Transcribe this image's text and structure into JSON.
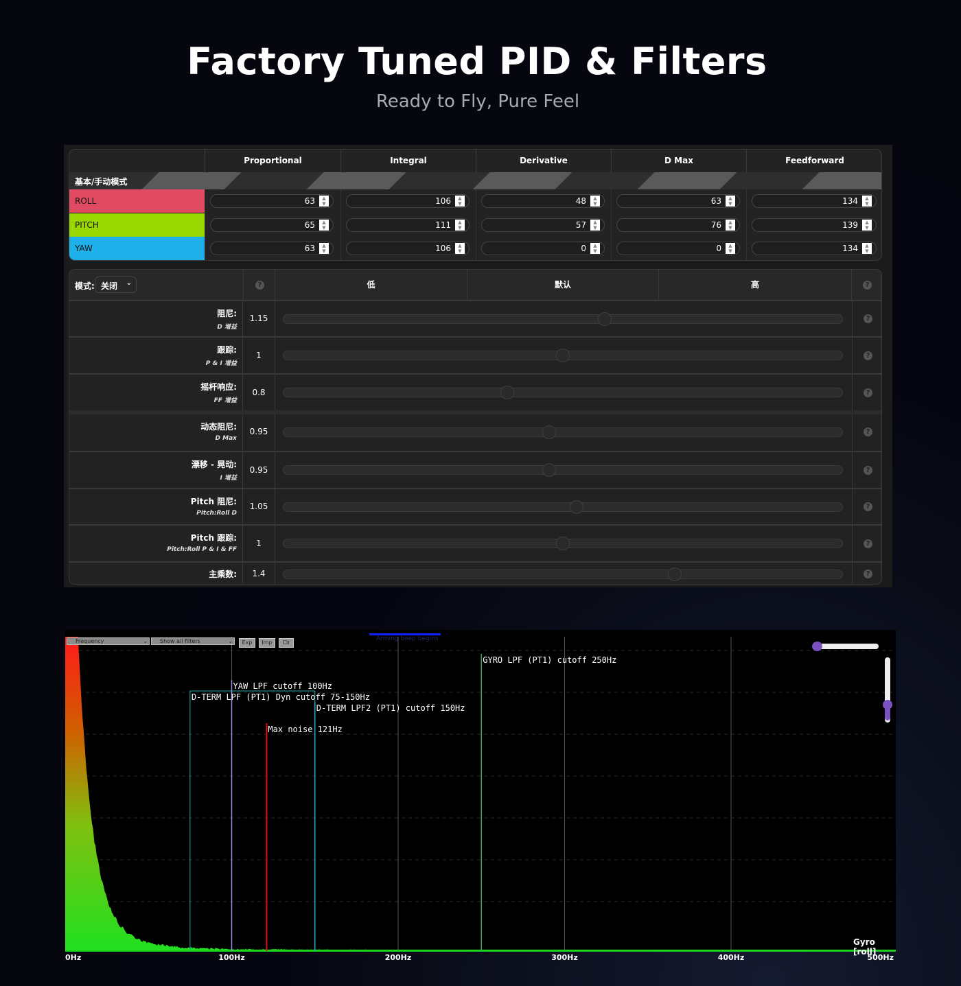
{
  "hero": {
    "title": "Factory Tuned PID & Filters",
    "subtitle": "Ready to Fly, Pure Feel"
  },
  "pid_table": {
    "columns": [
      "Proportional",
      "Integral",
      "Derivative",
      "D Max",
      "Feedforward"
    ],
    "mode_label": "基本/手动模式",
    "rows": [
      {
        "axis": "ROLL",
        "color": "#e04a63",
        "values": [
          "63",
          "106",
          "48",
          "63",
          "134"
        ]
      },
      {
        "axis": "PITCH",
        "color": "#99d800",
        "values": [
          "65",
          "111",
          "57",
          "76",
          "139"
        ]
      },
      {
        "axis": "YAW",
        "color": "#1eb0e8",
        "values": [
          "63",
          "106",
          "0",
          "0",
          "134"
        ]
      }
    ]
  },
  "sliders": {
    "mode_label": "模式:",
    "mode_value": "关闭",
    "levels": [
      "低",
      "默认",
      "高"
    ],
    "range": [
      0,
      2
    ],
    "rows": [
      {
        "label": "阻尼:",
        "sub": "D 增益",
        "value": "1.15",
        "num": 1.15
      },
      {
        "label": "跟踪:",
        "sub": "P & I 增益",
        "value": "1",
        "num": 1
      },
      {
        "label": "摇杆响应:",
        "sub": "FF 增益",
        "value": "0.8",
        "num": 0.8
      },
      {
        "label": "动态阻尼:",
        "sub": "D Max",
        "value": "0.95",
        "num": 0.95
      },
      {
        "label": "漂移 - 晃动:",
        "sub": "I 增益",
        "value": "0.95",
        "num": 0.95
      },
      {
        "label": "Pitch 阻尼:",
        "sub": "Pitch:Roll D",
        "value": "1.05",
        "num": 1.05
      },
      {
        "label": "Pitch 跟踪:",
        "sub": "Pitch:Roll P & I & FF",
        "value": "1",
        "num": 1
      },
      {
        "label": "主乘数:",
        "sub": "",
        "value": "1.4",
        "num": 1.4
      }
    ]
  },
  "analyser": {
    "controls": {
      "mode_select": "Frequency",
      "filter_select": "Show all filters",
      "exp": "Exp",
      "imp": "Imp",
      "clr": "Clr"
    },
    "background_marker": "Arming beep begins",
    "trace_label": "Gyro [roll]",
    "chart_data": {
      "type": "area",
      "xlabel": "",
      "xlim": [
        0,
        500
      ],
      "x_ticks": [
        "0Hz",
        "100Hz",
        "200Hz",
        "300Hz",
        "400Hz",
        "500Hz"
      ],
      "grid": true,
      "markers": [
        {
          "label": "YAW LPF cutoff 100Hz",
          "freq": 100,
          "color": "#8f8fe0"
        },
        {
          "label": "D-TERM LPF (PT1) Dyn cutoff 75-150Hz",
          "freq": [
            75,
            150
          ],
          "color": "#2aa6a6"
        },
        {
          "label": "D-TERM LPF2 (PT1) cutoff 150Hz",
          "freq": 150,
          "color": "#2aa6c0"
        },
        {
          "label": "Max noise 121Hz",
          "freq": 121,
          "color": "#e01010"
        },
        {
          "label": "GYRO LPF (PT1) cutoff 250Hz",
          "freq": 250,
          "color": "#40a060"
        }
      ]
    }
  }
}
